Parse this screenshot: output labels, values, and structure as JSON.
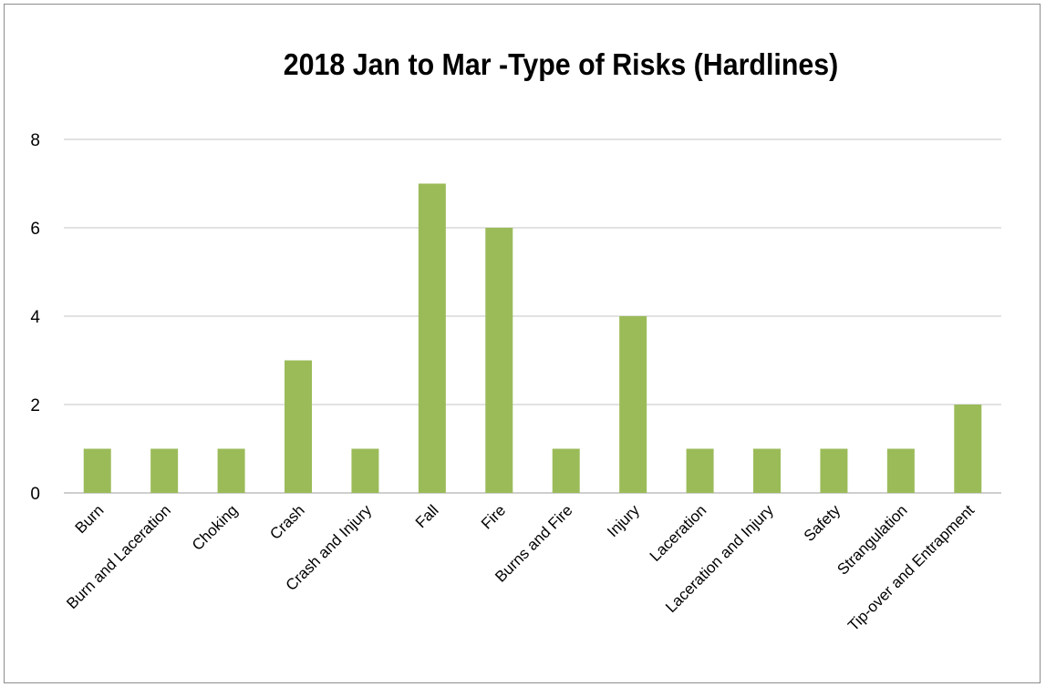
{
  "chart_data": {
    "type": "bar",
    "title": "2018 Jan to Mar -Type of Risks (Hardlines)",
    "categories": [
      "Burn",
      "Burn and Laceration",
      "Choking",
      "Crash",
      "Crash and Injury",
      "Fall",
      "Fire",
      "Burns and Fire",
      "Injury",
      "Laceration",
      "Laceration and Injury",
      "Safety",
      "Strangulation",
      "Tip-over and Entrapment"
    ],
    "values": [
      1,
      1,
      1,
      3,
      1,
      7,
      6,
      1,
      4,
      1,
      1,
      1,
      1,
      2
    ],
    "xlabel": "",
    "ylabel": "",
    "ylim": [
      0,
      8
    ],
    "yticks": [
      "0",
      "2",
      "4",
      "6",
      "8"
    ],
    "grid": true,
    "legend": "none",
    "bar_color": "#9bbb59"
  }
}
